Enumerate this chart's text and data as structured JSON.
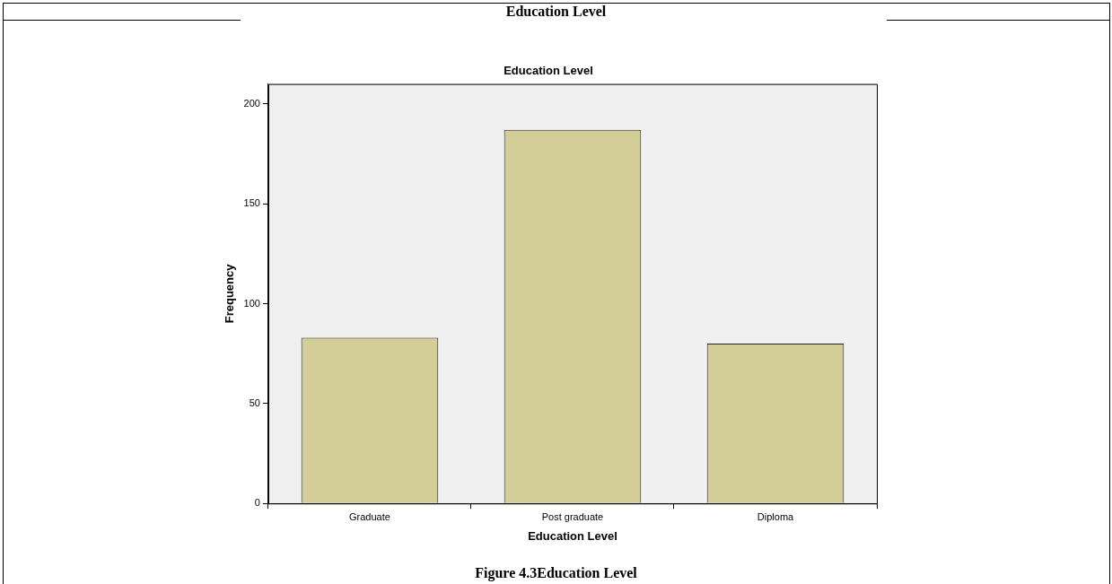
{
  "chart_data": {
    "type": "bar",
    "title": "Education Level",
    "xlabel": "Education Level",
    "ylabel": "Frequency",
    "categories": [
      "Graduate",
      "Post graduate",
      "Diploma"
    ],
    "values": [
      83,
      187,
      80
    ],
    "color": "#d3ce98",
    "ylim": [
      0,
      210
    ],
    "yticks": [
      0,
      50,
      100,
      150,
      200
    ],
    "grid": false,
    "legend": false,
    "annotations": [
      "Education Level",
      "Figure 4.3Education Level"
    ]
  }
}
